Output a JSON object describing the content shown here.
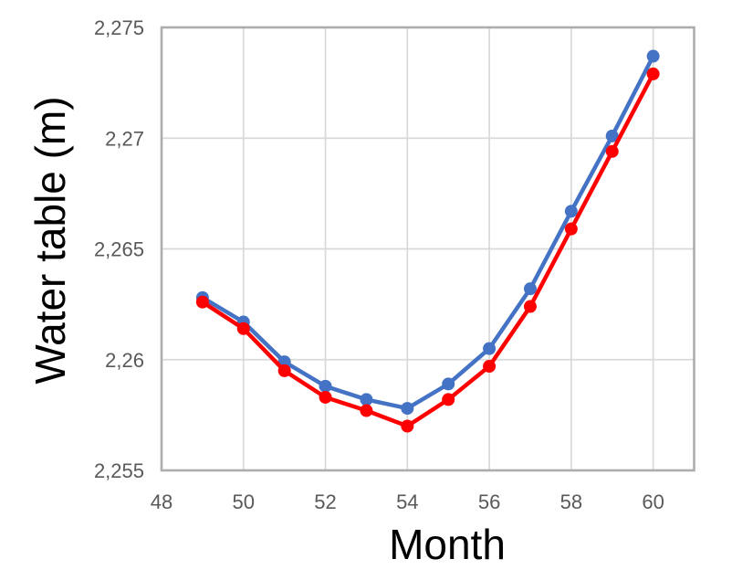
{
  "chart_data": {
    "type": "line",
    "title": "",
    "xlabel": "Month",
    "ylabel": "Water table (m)",
    "x": [
      49,
      50,
      51,
      52,
      53,
      54,
      55,
      56,
      57,
      58,
      59,
      60
    ],
    "series": [
      {
        "name": "series-blue",
        "color": "#4472C4",
        "values": [
          2.2628,
          2.2617,
          2.2599,
          2.2588,
          2.2582,
          2.2578,
          2.2589,
          2.2605,
          2.2632,
          2.2667,
          2.2701,
          2.2737
        ]
      },
      {
        "name": "series-red",
        "color": "#FF0000",
        "values": [
          2.2626,
          2.2614,
          2.2595,
          2.2583,
          2.2577,
          2.257,
          2.2582,
          2.2597,
          2.2624,
          2.2659,
          2.2694,
          2.2729
        ]
      }
    ],
    "xlim": [
      48,
      61
    ],
    "ylim": [
      2.255,
      2.275
    ],
    "x_ticks": [
      {
        "v": 48,
        "label": "48"
      },
      {
        "v": 50,
        "label": "50"
      },
      {
        "v": 52,
        "label": "52"
      },
      {
        "v": 54,
        "label": "54"
      },
      {
        "v": 56,
        "label": "56"
      },
      {
        "v": 58,
        "label": "58"
      },
      {
        "v": 60,
        "label": "60"
      }
    ],
    "y_ticks": [
      {
        "v": 2.255,
        "label": "2,255"
      },
      {
        "v": 2.26,
        "label": "2,26"
      },
      {
        "v": 2.265,
        "label": "2,265"
      },
      {
        "v": 2.27,
        "label": "2,27"
      },
      {
        "v": 2.275,
        "label": "2,275"
      }
    ],
    "grid": true,
    "legend": false,
    "marker": "circle",
    "colors": {
      "background": "#FFFFFF",
      "gridline": "#D9D9D9",
      "plot_border": "#ADADAD",
      "tick_text": "#595959",
      "title_text": "#000000"
    }
  }
}
